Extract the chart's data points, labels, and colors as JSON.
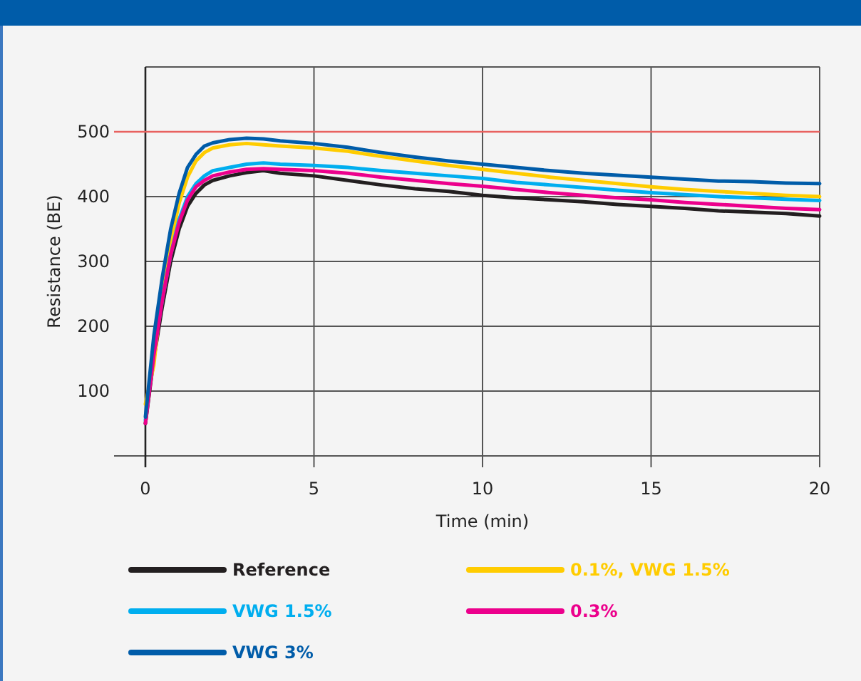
{
  "chart_data": {
    "type": "line",
    "xlabel": "Time (min)",
    "ylabel": "Resistance (BE)",
    "xlim": [
      0,
      20
    ],
    "xticks": [
      0,
      5,
      10,
      15,
      20
    ],
    "ylim": [
      0,
      600
    ],
    "yticks": [
      {
        "value": 0,
        "label": null
      },
      100,
      200,
      300,
      400,
      500,
      {
        "value": 600,
        "label": null
      }
    ],
    "grid": true,
    "legend": "bottom",
    "line_style": "solid",
    "ref_lines": [
      {
        "axis": "y",
        "value": 500,
        "label": null,
        "color": "#e8625f"
      }
    ],
    "x": [
      0,
      0.25,
      0.5,
      0.75,
      1,
      1.25,
      1.5,
      1.75,
      2,
      2.5,
      3,
      3.5,
      4,
      5,
      6,
      7,
      8,
      9,
      10,
      11,
      12,
      13,
      14,
      15,
      16,
      17,
      18,
      19,
      20
    ],
    "series": [
      {
        "name": "Reference",
        "color": "#231f20",
        "values": [
          50,
          150,
          230,
          300,
          350,
          385,
          405,
          418,
          425,
          432,
          437,
          440,
          436,
          432,
          425,
          418,
          412,
          408,
          402,
          398,
          395,
          392,
          388,
          385,
          382,
          378,
          376,
          374,
          370
        ]
      },
      {
        "name": "0.1%, VWG 1.5%",
        "color": "#ffcc00",
        "values": [
          80,
          140,
          260,
          330,
          390,
          430,
          455,
          468,
          475,
          480,
          482,
          480,
          478,
          475,
          470,
          462,
          455,
          448,
          442,
          436,
          430,
          425,
          420,
          415,
          411,
          408,
          405,
          402,
          400
        ]
      },
      {
        "name": "VWG 1.5%",
        "color": "#00aeef",
        "values": [
          55,
          160,
          240,
          310,
          365,
          400,
          420,
          432,
          440,
          445,
          450,
          452,
          450,
          448,
          445,
          440,
          436,
          432,
          428,
          422,
          418,
          414,
          410,
          406,
          403,
          400,
          398,
          396,
          394
        ]
      },
      {
        "name": "0.3%",
        "color": "#ec008c",
        "values": [
          50,
          155,
          240,
          310,
          360,
          395,
          415,
          425,
          432,
          438,
          442,
          443,
          442,
          440,
          436,
          430,
          425,
          420,
          416,
          411,
          406,
          402,
          398,
          395,
          391,
          388,
          385,
          382,
          380
        ]
      },
      {
        "name": "VWG 3%",
        "color": "#005ca9",
        "values": [
          60,
          185,
          275,
          350,
          405,
          445,
          465,
          478,
          483,
          488,
          490,
          489,
          486,
          482,
          476,
          468,
          461,
          455,
          450,
          445,
          440,
          436,
          433,
          430,
          427,
          424,
          423,
          421,
          420
        ]
      }
    ]
  }
}
